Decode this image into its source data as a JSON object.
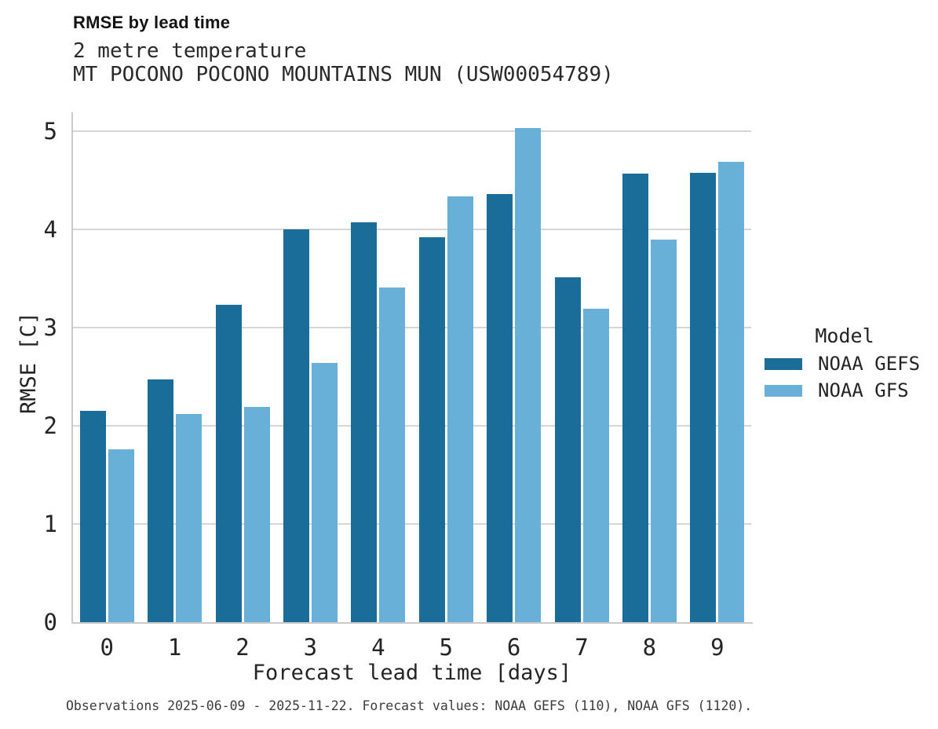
{
  "chart_data": {
    "type": "bar",
    "title": "RMSE by lead time",
    "subtitle": "2 metre temperature",
    "station": "MT POCONO POCONO MOUNTAINS MUN (USW00054789)",
    "xlabel": "Forecast lead time [days]",
    "ylabel": "RMSE [C]",
    "categories": [
      "0",
      "1",
      "2",
      "3",
      "4",
      "5",
      "6",
      "7",
      "8",
      "9"
    ],
    "series": [
      {
        "name": "NOAA GEFS",
        "color": "#1a6d99",
        "values": [
          2.15,
          2.47,
          3.23,
          4.0,
          4.07,
          3.92,
          4.36,
          3.51,
          4.57,
          4.58
        ]
      },
      {
        "name": "NOAA GFS",
        "color": "#68b0d8",
        "values": [
          1.76,
          2.12,
          2.19,
          2.64,
          3.41,
          4.34,
          5.03,
          3.19,
          3.9,
          4.69
        ]
      }
    ],
    "yticks": [
      0,
      1,
      2,
      3,
      4,
      5
    ],
    "ylim": [
      0,
      5.176
    ],
    "grid": true,
    "legend": {
      "title": "Model",
      "position": "right"
    },
    "caption": "Observations 2025-06-09 - 2025-11-22. Forecast values: NOAA GEFS (110), NOAA GFS (1120)."
  }
}
